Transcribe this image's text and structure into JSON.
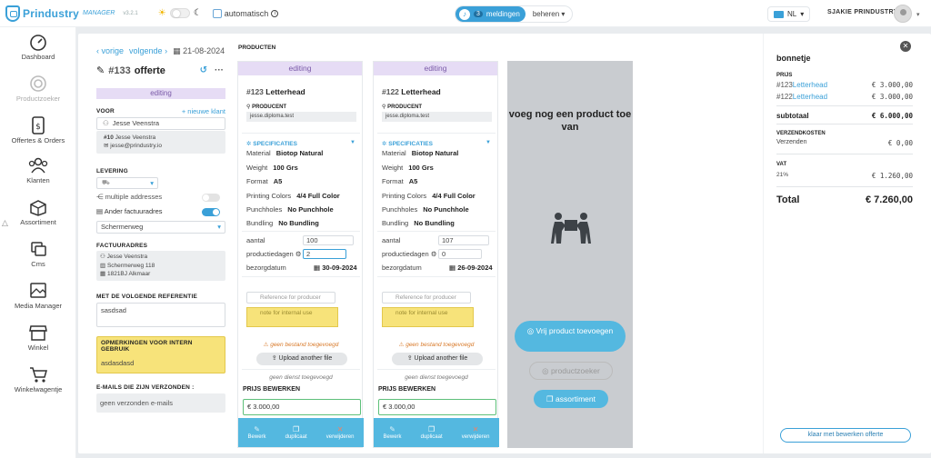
{
  "app": {
    "brand": "Prindustry",
    "brand_sub": "MANAGER",
    "version": "v3.2.1",
    "auto_label": "automatisch"
  },
  "header": {
    "meldingen_count": "3",
    "meldingen_label": "meldingen",
    "beheren_label": "beheren",
    "language": "NL",
    "user": "SJAKIE PRINDUSTRY"
  },
  "sidebar": {
    "items": [
      {
        "label": "Dashboard",
        "icon": "dashboard-icon"
      },
      {
        "label": "Productzoeker",
        "icon": "target-icon"
      },
      {
        "label": "Offertes & Orders",
        "icon": "invoice-icon"
      },
      {
        "label": "Klanten",
        "icon": "users-icon"
      },
      {
        "label": "Assortiment",
        "icon": "box-icon"
      },
      {
        "label": "Cms",
        "icon": "layers-icon"
      },
      {
        "label": "Media Manager",
        "icon": "image-icon"
      },
      {
        "label": "Winkel",
        "icon": "shop-icon"
      },
      {
        "label": "Winkelwagentje",
        "icon": "cart-icon"
      }
    ]
  },
  "nav": {
    "prev": "vorige",
    "next": "volgende",
    "date": "21-08-2024"
  },
  "doc": {
    "number": "#133",
    "type": "offerte",
    "status": "editing"
  },
  "form": {
    "voor_label": "VOOR",
    "new_client": "+ nieuwe klant",
    "client": "Jesse Veenstra",
    "client_id": "#10",
    "client_name": "Jesse Veenstra",
    "client_email": "jesse@prindustry.io",
    "levering_label": "LEVERING",
    "multiple_label": "multiple addresses",
    "factuur_toggle_label": "Ander factuuradres",
    "factuur_select": "Schermerweg",
    "factuuradres_label": "FACTUURADRES",
    "addr_name": "Jesse Veenstra",
    "addr_street": "Schermerweg 118",
    "addr_city": "1821BJ Alkmaar",
    "ref_label": "MET DE VOLGENDE REFERENTIE",
    "ref_value": "sasdsad",
    "opm_label": "OPMERKINGEN VOOR INTERN GEBRUIK",
    "opm_value": "asdasdasd",
    "emails_label": "E-MAILS DIE ZIJN VERZONDEN :",
    "emails_value": "geen verzonden e-mails"
  },
  "products_title": "PRODUCTEN",
  "products": [
    {
      "status": "editing",
      "id": "#123",
      "name": "Letterhead",
      "producent_label": "PRODUCENT",
      "producent": "jesse.diploma.test",
      "spec_label": "SPECIFICATIES",
      "specs": [
        [
          "Material",
          "Biotop Natural"
        ],
        [
          "Weight",
          "100 Grs"
        ],
        [
          "Format",
          "A5"
        ],
        [
          "Printing Colors",
          "4/4 Full Color"
        ],
        [
          "Punchholes",
          "No Punchhole"
        ],
        [
          "Bundling",
          "No Bundling"
        ]
      ],
      "aantal_label": "aantal",
      "aantal": "100",
      "prod_label": "productiedagen",
      "prod": "2",
      "bez_label": "bezorgdatum",
      "bez": "30-09-2024",
      "ref_ph": "Reference for producer",
      "note_ph": "note for internal use",
      "nofile": "geen bestand toegevoegd",
      "upload": "Upload another file",
      "nodienst": "geen dienst toegevoegd",
      "prijs_label": "PRIJS BEWERKEN",
      "prijs": "€ 3.000,00",
      "foot": [
        "Bewerk",
        "duplicaat",
        "verwijderen"
      ]
    },
    {
      "status": "editing",
      "id": "#122",
      "name": "Letterhead",
      "producent_label": "PRODUCENT",
      "producent": "jesse.diploma.test",
      "spec_label": "SPECIFICATIES",
      "specs": [
        [
          "Material",
          "Biotop Natural"
        ],
        [
          "Weight",
          "100 Grs"
        ],
        [
          "Format",
          "A5"
        ],
        [
          "Printing Colors",
          "4/4 Full Color"
        ],
        [
          "Punchholes",
          "No Punchhole"
        ],
        [
          "Bundling",
          "No Bundling"
        ]
      ],
      "aantal_label": "aantal",
      "aantal": "107",
      "prod_label": "productiedagen",
      "prod": "0",
      "bez_label": "bezorgdatum",
      "bez": "26-09-2024",
      "ref_ph": "Reference for producer",
      "note_ph": "note for internal use",
      "nofile": "geen bestand toegevoegd",
      "upload": "Upload another file",
      "nodienst": "geen dienst toegevoegd",
      "prijs_label": "PRIJS BEWERKEN",
      "prijs": "€ 3.000,00",
      "foot": [
        "Bewerk",
        "duplicaat",
        "verwijderen"
      ]
    }
  ],
  "add": {
    "title": "voeg nog een product toe van",
    "vrij": "Vrij product toevoegen",
    "productzoeker": "productzoeker",
    "assortiment": "assortiment"
  },
  "bon": {
    "title": "bonnetje",
    "prijs_label": "PRIJS",
    "lines": [
      {
        "id": "#123",
        "name": "Letterhead",
        "amount": "€ 3.000,00"
      },
      {
        "id": "#122",
        "name": "Letterhead",
        "amount": "€ 3.000,00"
      }
    ],
    "subtotaal_label": "subtotaal",
    "subtotaal": "€ 6.000,00",
    "verzend_label": "VERZENDKOSTEN",
    "verzenden_label": "Verzenden",
    "verzenden": "€ 0,00",
    "vat_label": "VAT",
    "vat_rate": "21%",
    "vat": "€ 1.260,00",
    "total_label": "Total",
    "total": "€ 7.260,00",
    "klaar": "klaar met bewerken offerte"
  },
  "colors": {
    "accent": "#3aa0d8",
    "editing_bg": "#e6dcf5",
    "warning": "#d87a2a",
    "note_yellow": "#f7e37a"
  }
}
